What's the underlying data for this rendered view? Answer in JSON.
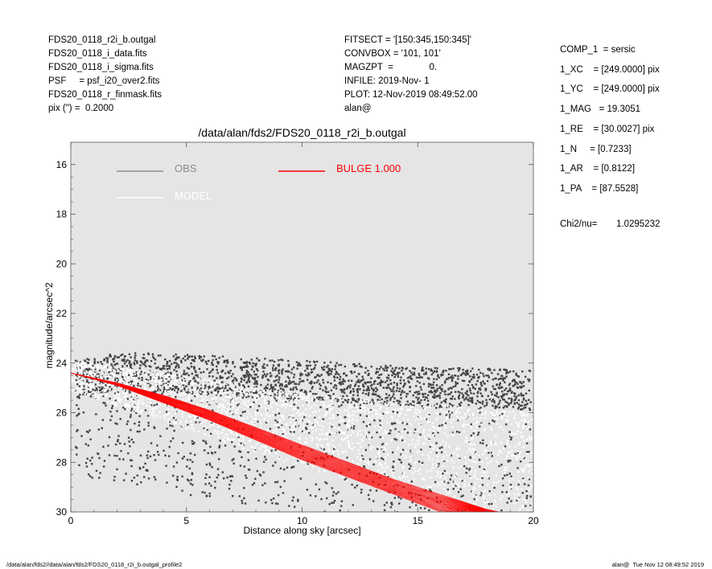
{
  "header_left": [
    "FDS20_0118_r2i_b.outgal",
    "FDS20_0118_i_data.fits",
    "FDS20_0118_i_sigma.fits",
    "PSF     = psf_i20_over2.fits",
    "FDS20_0118_r_finmask.fits",
    "pix (\") =  0.2000"
  ],
  "header_mid": [
    "FITSECT = '[150:345,150:345]'",
    "CONVBOX = '101, 101'",
    "MAGZPT  =              0.",
    "INFILE: 2019-Nov- 1",
    "PLOT: 12-Nov-2019 08:49:52.00",
    "alan@"
  ],
  "header_right": [
    "COMP_1  = sersic",
    "1_XC    = [249.0000] pix",
    "1_YC    = [249.0000] pix",
    "1_MAG   = 19.3051",
    "1_RE    = [30.0027] pix",
    "1_N     = [0.7233]",
    "1_AR    = [0.8122]",
    "1_PA    = [87.5528]"
  ],
  "chi": {
    "label": "Chi2/nu=",
    "value": "1.0295232"
  },
  "footer": {
    "left": "/data/alan/fds2//data/alan/fds2/FDS20_0118_r2i_b.outgal_profile2",
    "right": "alan@  Tue Nov 12 08:49:52 2019"
  },
  "colors": {
    "plot_bg": "#e5e5e5",
    "obs": "#444444",
    "model": "#ffffff",
    "bulge": "#ff0000",
    "legend_obs": "#8c8c8c"
  },
  "chart_data": {
    "type": "scatter",
    "title": "/data/alan/fds2/FDS20_0118_r2i_b.outgal",
    "xlabel": "Distance along sky [arcsec]",
    "ylabel": "magnitude/arcsec^2",
    "xlim": [
      0,
      20
    ],
    "ylim": [
      30,
      15.1
    ],
    "y_inverted": true,
    "xticks": [
      0,
      5,
      10,
      15,
      20
    ],
    "yticks": [
      16,
      18,
      20,
      22,
      24,
      26,
      28,
      30
    ],
    "legend": [
      {
        "name": "OBS",
        "color": "#8c8c8c"
      },
      {
        "name": "MODEL",
        "color": "#ffffff"
      },
      {
        "name": "BULGE  1.000",
        "color": "#ff0000"
      }
    ],
    "series": [
      {
        "name": "OBS",
        "description_points": "scattered pixel values",
        "x": [
          0.5,
          2,
          4,
          6,
          8,
          10,
          12,
          14,
          16,
          18,
          19.5
        ],
        "y_median": [
          24.6,
          24.4,
          24.4,
          24.5,
          24.6,
          24.7,
          24.8,
          24.9,
          25.0,
          25.0,
          25.1
        ],
        "y_spread": [
          2.2,
          2.3,
          2.5,
          2.6,
          2.7,
          2.8,
          2.8,
          2.8,
          2.8,
          2.8,
          2.8
        ]
      },
      {
        "name": "MODEL",
        "x": [
          0,
          2,
          4,
          6,
          8,
          10,
          12,
          14,
          16,
          18,
          20
        ],
        "y_median": [
          24.5,
          24.8,
          25.0,
          25.3,
          25.6,
          25.8,
          26.0,
          26.2,
          26.3,
          26.5,
          26.6
        ]
      },
      {
        "name": "BULGE",
        "x": [
          0,
          2,
          4,
          6,
          8,
          10,
          12,
          14,
          16,
          18,
          18.5
        ],
        "y_upper": [
          24.4,
          24.8,
          25.3,
          25.9,
          26.6,
          27.3,
          28.0,
          28.7,
          29.3,
          29.9,
          30.0
        ],
        "y_lower": [
          24.4,
          24.9,
          25.6,
          26.3,
          27.1,
          27.9,
          28.6,
          29.3,
          30.0,
          30.0,
          30.0
        ]
      }
    ]
  }
}
